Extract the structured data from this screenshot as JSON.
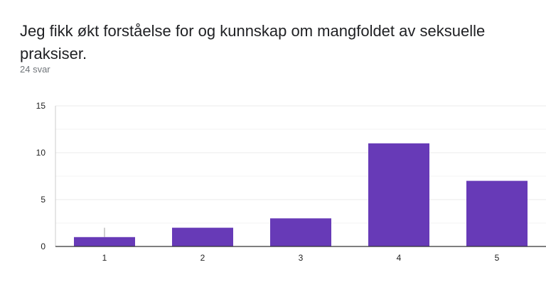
{
  "question": {
    "title": "Jeg fikk økt forståelse for og kunnskap om mangfoldet av seksuelle praksiser.",
    "response_count": "24 svar"
  },
  "chart_data": {
    "type": "bar",
    "categories": [
      "1",
      "2",
      "3",
      "4",
      "5"
    ],
    "values": [
      1,
      2,
      3,
      11,
      7
    ],
    "ylim": [
      0,
      15
    ],
    "y_ticks": [
      0,
      5,
      10,
      15
    ],
    "grid": true,
    "bar_color": "#673ab7",
    "grid_color": "#ebebeb",
    "axis_color": "#333333"
  }
}
